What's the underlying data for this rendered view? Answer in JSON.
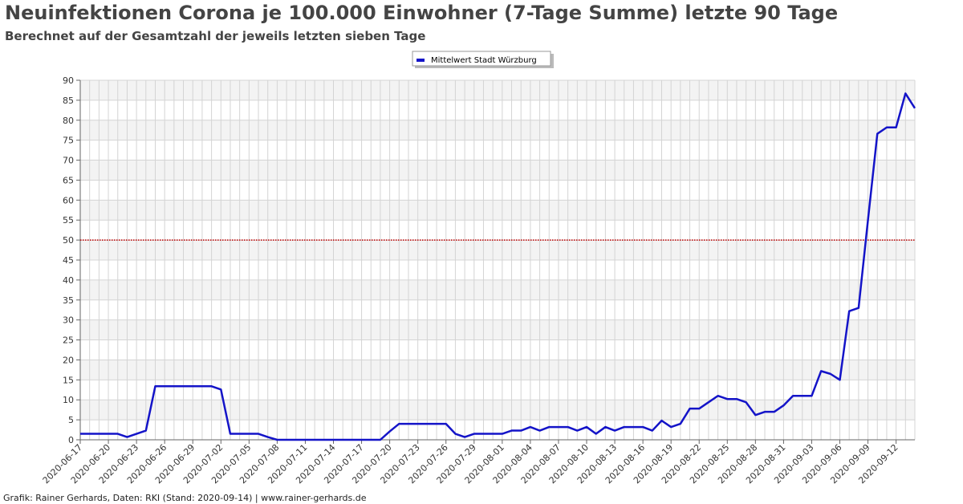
{
  "chart_data": {
    "type": "line",
    "title": "Neuinfektionen Corona je 100.000 Einwohner (7-Tage Summe) letzte 90 Tage",
    "subtitle": "Berechnet auf der Gesamtzahl der jeweils letzten sieben Tage",
    "footer": "Grafik: Rainer Gerhards, Daten: RKI (Stand: 2020-09-14) | www.rainer-gerhards.de",
    "categories": [
      "2020-06-17",
      null,
      null,
      "2020-06-20",
      null,
      null,
      "2020-06-23",
      null,
      null,
      "2020-06-26",
      null,
      null,
      "2020-06-29",
      null,
      null,
      "2020-07-02",
      null,
      null,
      "2020-07-05",
      null,
      null,
      "2020-07-08",
      null,
      null,
      "2020-07-11",
      null,
      null,
      "2020-07-14",
      null,
      null,
      "2020-07-17",
      null,
      null,
      "2020-07-20",
      null,
      null,
      "2020-07-23",
      null,
      null,
      "2020-07-26",
      null,
      null,
      "2020-07-29",
      null,
      null,
      "2020-08-01",
      null,
      null,
      "2020-08-04",
      null,
      null,
      "2020-08-07",
      null,
      null,
      "2020-08-10",
      null,
      null,
      "2020-08-13",
      null,
      null,
      "2020-08-16",
      null,
      null,
      "2020-08-19",
      null,
      null,
      "2020-08-22",
      null,
      null,
      "2020-08-25",
      null,
      null,
      "2020-08-28",
      null,
      null,
      "2020-08-31",
      null,
      null,
      "2020-09-03",
      null,
      null,
      "2020-09-06",
      null,
      null,
      "2020-09-09",
      null,
      null,
      "2020-09-12",
      null,
      null
    ],
    "series": [
      {
        "name": "Mittelwert Stadt Würzburg",
        "color": "#1414c8",
        "values": [
          1.5,
          1.5,
          1.5,
          1.5,
          1.5,
          0.7,
          1.5,
          2.3,
          13.4,
          13.4,
          13.4,
          13.4,
          13.4,
          13.4,
          13.4,
          12.6,
          1.5,
          1.5,
          1.5,
          1.5,
          0.7,
          0,
          0,
          0,
          0,
          0,
          0,
          0,
          0,
          0,
          0,
          0,
          0,
          2.1,
          4,
          4,
          4,
          4,
          4,
          4,
          1.5,
          0.7,
          1.5,
          1.5,
          1.5,
          1.5,
          2.3,
          2.3,
          3.2,
          2.3,
          3.2,
          3.2,
          3.2,
          2.3,
          3.2,
          1.5,
          3.2,
          2.3,
          3.2,
          3.2,
          3.2,
          2.3,
          4.8,
          3.2,
          4.0,
          7.8,
          7.8,
          9.4,
          11,
          10.2,
          10.2,
          9.4,
          6.2,
          7.0,
          7.0,
          8.6,
          11,
          11,
          11,
          17.2,
          16.5,
          15,
          32.2,
          33,
          55,
          76.6,
          78.2,
          78.2,
          86.7,
          83
        ]
      }
    ],
    "threshold": 50,
    "threshold_color": "#c00000",
    "ylim": [
      0,
      90
    ],
    "yticks": [
      0,
      5,
      10,
      15,
      20,
      25,
      30,
      35,
      40,
      45,
      50,
      55,
      60,
      65,
      70,
      75,
      80,
      85,
      90
    ],
    "grid": true,
    "legend": "top"
  }
}
